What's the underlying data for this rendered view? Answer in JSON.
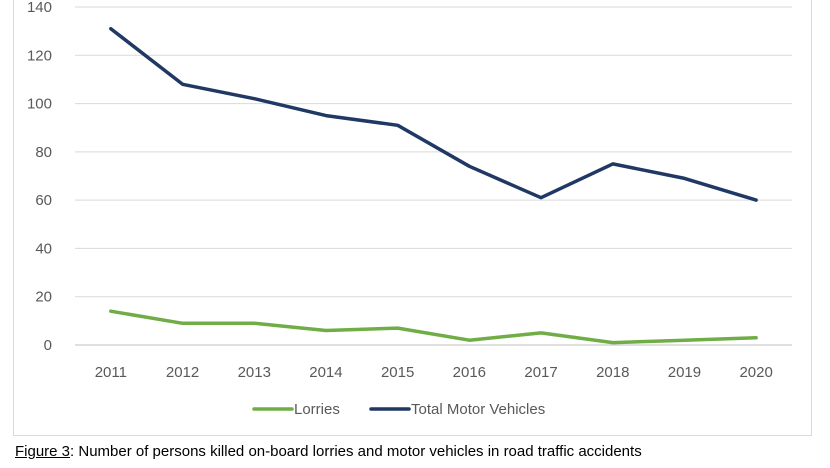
{
  "chart_data": {
    "type": "line",
    "title": "",
    "xlabel": "",
    "ylabel": "",
    "categories": [
      "2011",
      "2012",
      "2013",
      "2014",
      "2015",
      "2016",
      "2017",
      "2018",
      "2019",
      "2020"
    ],
    "ylim": [
      0,
      140
    ],
    "yticks": [
      "0",
      "20",
      "40",
      "60",
      "80",
      "100",
      "120",
      "140"
    ],
    "grid": true,
    "legend_position": "bottom",
    "series": [
      {
        "name": "Lorries",
        "color": "#70ad47",
        "values": [
          14,
          9,
          9,
          6,
          7,
          2,
          5,
          1,
          2,
          3
        ]
      },
      {
        "name": "Total Motor Vehicles",
        "color": "#203864",
        "values": [
          131,
          108,
          102,
          95,
          91,
          74,
          61,
          75,
          69,
          60
        ]
      }
    ]
  },
  "caption": {
    "prefix": "Figure 3",
    "text": ": Number of persons killed on-board lorries and motor vehicles in road traffic accidents"
  }
}
